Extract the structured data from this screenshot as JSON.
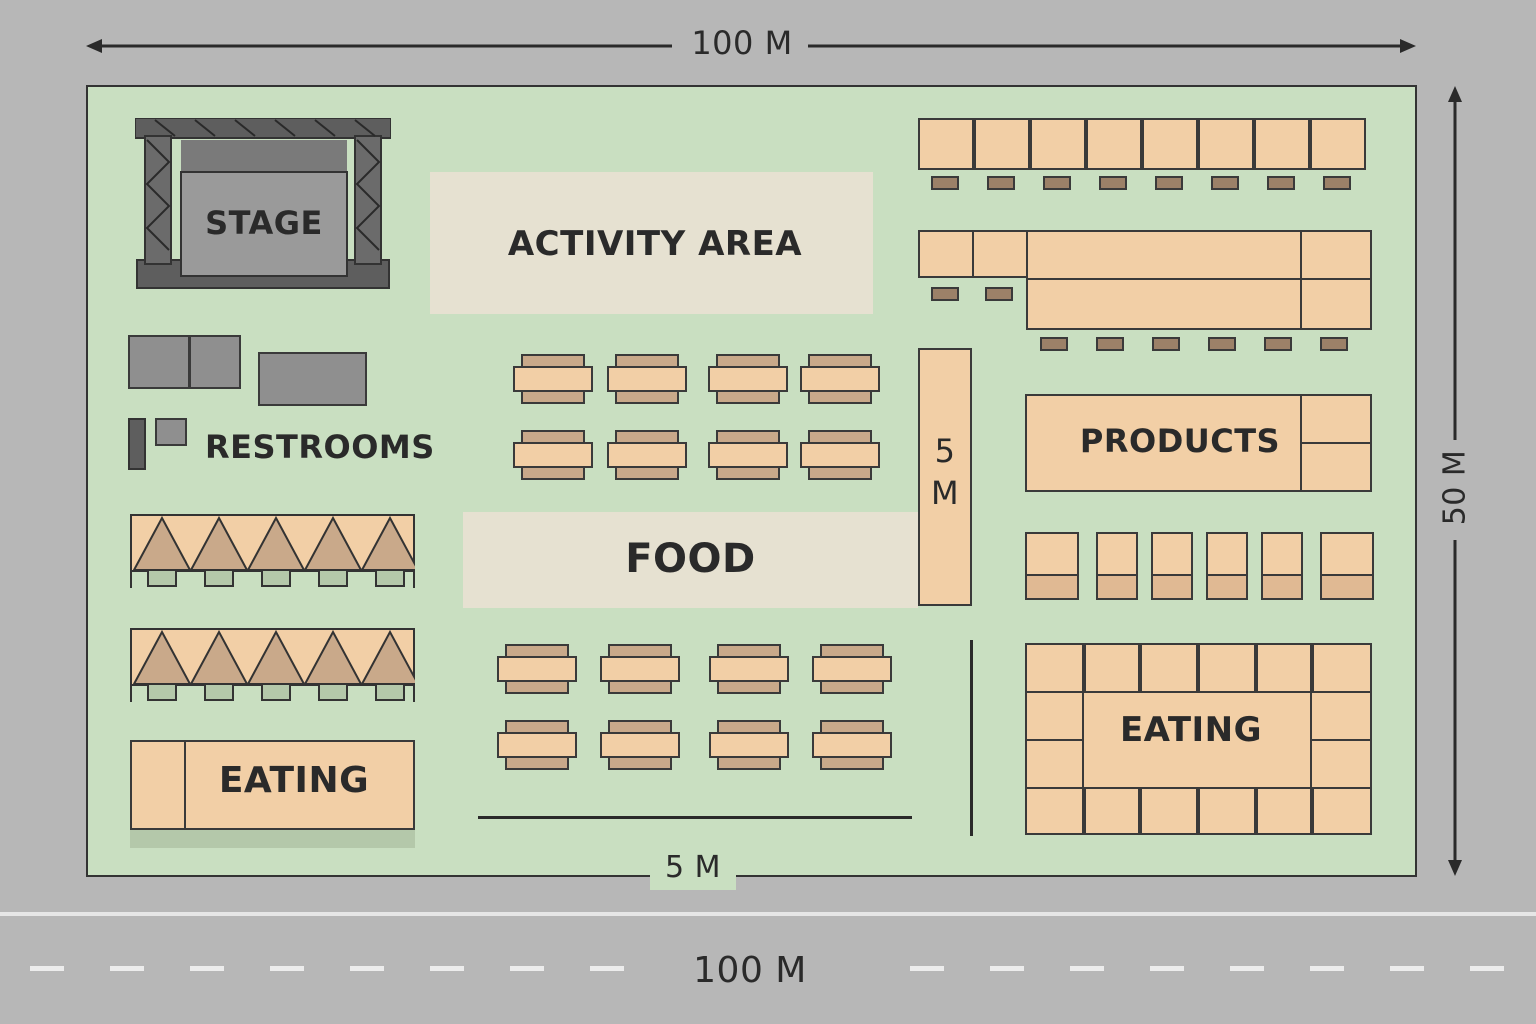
{
  "dimensions": {
    "top_width": "100 M",
    "bottom_road": "100 M",
    "right_height": "50 M",
    "path_width_bottom": "5 M",
    "path_width_vertical_line1": "5",
    "path_width_vertical_line2": "M"
  },
  "zones": {
    "stage": "STAGE",
    "activity": "ACTIVITY AREA",
    "restrooms": "RESTROOMS",
    "food": "FOOD",
    "products": "PRODUCTS",
    "eating_left": "EATING",
    "eating_right": "EATING"
  },
  "colors": {
    "ground": "#c9dfc1",
    "road": "#b7b7b7",
    "stall": "#f2cfa6",
    "open_area": "#e6e1d1",
    "structure": "#8f8f8f"
  }
}
